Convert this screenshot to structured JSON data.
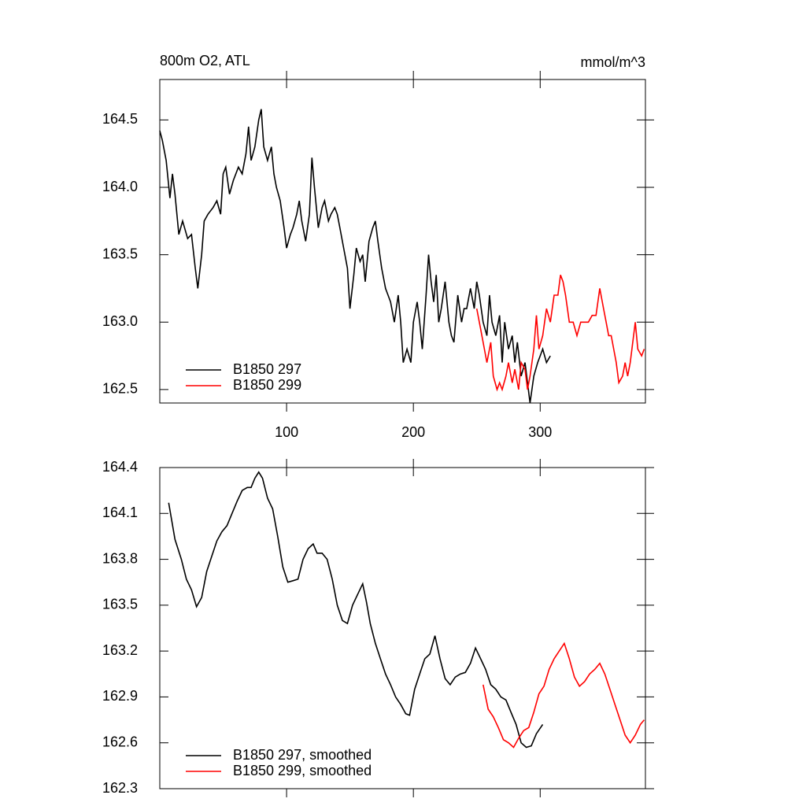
{
  "chart_data": [
    {
      "type": "line",
      "title": "800m O2, ATL",
      "units": "mmol/m^3",
      "xlim": [
        0,
        383
      ],
      "xticks": [
        100,
        200,
        300
      ],
      "ylim": [
        162.4,
        164.8
      ],
      "yticks": [
        162.5,
        {
          "value": 163,
          "label": "163.0"
        },
        163.5,
        {
          "value": 164,
          "label": "164.0"
        },
        164.5
      ],
      "legend": "lower left",
      "series": [
        {
          "name": "B1850 297",
          "color": "#000000",
          "x": [
            0,
            2,
            5,
            8,
            10,
            12,
            15,
            18,
            22,
            25,
            28,
            30,
            33,
            35,
            38,
            42,
            45,
            48,
            50,
            52,
            55,
            58,
            62,
            65,
            68,
            70,
            72,
            75,
            78,
            80,
            82,
            85,
            88,
            90,
            92,
            95,
            98,
            100,
            103,
            105,
            108,
            110,
            112,
            115,
            118,
            120,
            122,
            125,
            128,
            130,
            133,
            135,
            138,
            140,
            142,
            145,
            148,
            150,
            153,
            155,
            158,
            160,
            162,
            165,
            168,
            170,
            172,
            175,
            178,
            180,
            182,
            185,
            188,
            190,
            192,
            195,
            198,
            200,
            203,
            205,
            207,
            210,
            212,
            214,
            216,
            218,
            220,
            222,
            225,
            228,
            230,
            232,
            235,
            238,
            240,
            242,
            245,
            248,
            250,
            252,
            255,
            258,
            260,
            262,
            265,
            268,
            270,
            272,
            275,
            278,
            280,
            282,
            285,
            288,
            290,
            292,
            295,
            298,
            300,
            302,
            305,
            308
          ],
          "values": [
            164.42,
            164.35,
            164.2,
            163.92,
            164.1,
            163.95,
            163.65,
            163.75,
            163.62,
            163.65,
            163.4,
            163.25,
            163.5,
            163.75,
            163.8,
            163.85,
            163.9,
            163.8,
            164.1,
            164.15,
            163.95,
            164.05,
            164.15,
            164.1,
            164.25,
            164.45,
            164.2,
            164.3,
            164.5,
            164.58,
            164.3,
            164.2,
            164.3,
            164.1,
            164.0,
            163.9,
            163.7,
            163.55,
            163.65,
            163.7,
            163.8,
            163.9,
            163.75,
            163.6,
            163.8,
            164.22,
            164.0,
            163.7,
            163.85,
            163.9,
            163.75,
            163.8,
            163.85,
            163.8,
            163.7,
            163.55,
            163.4,
            163.1,
            163.35,
            163.55,
            163.45,
            163.5,
            163.3,
            163.6,
            163.7,
            163.75,
            163.6,
            163.4,
            163.25,
            163.2,
            163.15,
            163.0,
            163.2,
            163.0,
            162.7,
            162.8,
            162.7,
            163.0,
            163.15,
            163.0,
            162.8,
            163.2,
            163.5,
            163.3,
            163.15,
            163.35,
            163.0,
            163.1,
            163.3,
            163.0,
            162.9,
            162.85,
            163.2,
            163.0,
            163.1,
            163.1,
            163.25,
            163.1,
            163.3,
            163.2,
            163.0,
            162.9,
            163.2,
            163.0,
            162.9,
            163.05,
            162.7,
            163.0,
            162.8,
            162.9,
            162.7,
            162.85,
            162.6,
            162.7,
            162.55,
            162.4,
            162.6,
            162.7,
            162.75,
            162.8,
            162.7,
            162.75
          ]
        },
        {
          "name": "B1850 299",
          "color": "#ff0000",
          "x": [
            250,
            253,
            256,
            258,
            261,
            263,
            266,
            268,
            270,
            273,
            275,
            278,
            280,
            283,
            285,
            288,
            290,
            292,
            295,
            297,
            299,
            302,
            305,
            308,
            311,
            314,
            316,
            318,
            320,
            323,
            326,
            329,
            332,
            335,
            338,
            341,
            344,
            347,
            350,
            352,
            354,
            356,
            358,
            360,
            362,
            365,
            367,
            369,
            371,
            373,
            375,
            377,
            380,
            382
          ],
          "values": [
            163.1,
            162.95,
            162.8,
            162.7,
            162.85,
            162.6,
            162.5,
            162.55,
            162.5,
            162.6,
            162.7,
            162.55,
            162.65,
            162.5,
            162.7,
            162.65,
            162.5,
            162.6,
            162.8,
            163.05,
            162.8,
            162.9,
            163.1,
            163.0,
            163.2,
            163.2,
            163.35,
            163.3,
            163.2,
            163.0,
            163.0,
            162.9,
            163.0,
            163.0,
            163.0,
            163.05,
            163.05,
            163.25,
            163.1,
            163.0,
            162.9,
            162.9,
            162.8,
            162.7,
            162.55,
            162.6,
            162.7,
            162.6,
            162.7,
            162.85,
            163.0,
            162.8,
            162.75,
            162.8
          ]
        }
      ]
    },
    {
      "type": "line",
      "xlim": [
        0,
        383
      ],
      "ylim": [
        162.3,
        164.4
      ],
      "yticks": [
        162.3,
        162.6,
        162.9,
        163.2,
        163.5,
        163.8,
        164.1,
        164.4
      ],
      "legend": "lower left",
      "series": [
        {
          "name": "B1850 297, smoothed",
          "color": "#000000",
          "x": [
            7,
            12,
            17,
            21,
            25,
            29,
            33,
            37,
            41,
            45,
            49,
            53,
            57,
            61,
            65,
            69,
            72,
            75,
            78,
            81,
            85,
            89,
            93,
            97,
            101,
            105,
            109,
            113,
            117,
            121,
            124,
            128,
            132,
            136,
            140,
            144,
            148,
            152,
            156,
            160,
            163,
            166,
            170,
            174,
            178,
            182,
            186,
            190,
            194,
            197,
            201,
            205,
            209,
            213,
            217,
            221,
            225,
            229,
            233,
            237,
            241,
            245,
            249,
            253,
            257,
            261,
            265,
            269,
            273,
            277,
            281,
            285,
            289,
            293,
            297,
            302
          ],
          "values": [
            164.17,
            163.93,
            163.8,
            163.67,
            163.6,
            163.49,
            163.55,
            163.72,
            163.82,
            163.92,
            163.98,
            164.02,
            164.1,
            164.18,
            164.25,
            164.27,
            164.27,
            164.33,
            164.37,
            164.33,
            164.2,
            164.13,
            163.95,
            163.75,
            163.65,
            163.66,
            163.67,
            163.8,
            163.87,
            163.9,
            163.84,
            163.84,
            163.8,
            163.67,
            163.5,
            163.4,
            163.38,
            163.5,
            163.57,
            163.64,
            163.52,
            163.38,
            163.25,
            163.15,
            163.05,
            162.98,
            162.9,
            162.85,
            162.79,
            162.78,
            162.95,
            163.05,
            163.15,
            163.18,
            163.3,
            163.15,
            163.02,
            162.98,
            163.03,
            163.05,
            163.06,
            163.12,
            163.22,
            163.15,
            163.08,
            162.98,
            162.95,
            162.9,
            162.88,
            162.8,
            162.72,
            162.6,
            162.57,
            162.58,
            162.66,
            162.72
          ]
        },
        {
          "name": "B1850 299, smoothed",
          "color": "#ff0000",
          "x": [
            255,
            259,
            263,
            267,
            271,
            275,
            279,
            283,
            287,
            291,
            295,
            299,
            303,
            307,
            311,
            315,
            319,
            323,
            327,
            331,
            335,
            339,
            343,
            347,
            351,
            355,
            359,
            363,
            367,
            371,
            375,
            379,
            382
          ],
          "values": [
            162.98,
            162.82,
            162.77,
            162.7,
            162.62,
            162.6,
            162.57,
            162.63,
            162.68,
            162.7,
            162.8,
            162.92,
            162.97,
            163.08,
            163.15,
            163.2,
            163.25,
            163.15,
            163.03,
            162.97,
            163.0,
            163.05,
            163.08,
            163.12,
            163.05,
            162.95,
            162.85,
            162.75,
            162.65,
            162.6,
            162.65,
            162.72,
            162.75
          ]
        }
      ]
    }
  ]
}
